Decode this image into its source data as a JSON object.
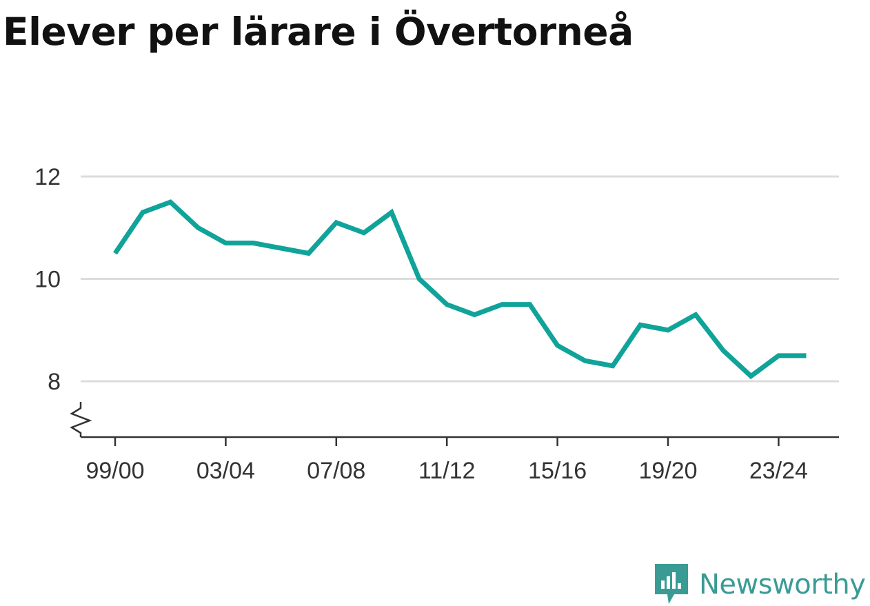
{
  "chart_data": {
    "type": "line",
    "title": "Elever per lärare i Övertorneå",
    "xlabel": "",
    "ylabel": "",
    "x": [
      "99/00",
      "00/01",
      "01/02",
      "02/03",
      "03/04",
      "04/05",
      "05/06",
      "06/07",
      "07/08",
      "08/09",
      "09/10",
      "10/11",
      "11/12",
      "12/13",
      "13/14",
      "14/15",
      "15/16",
      "16/17",
      "17/18",
      "18/19",
      "19/20",
      "20/21",
      "21/22",
      "22/23",
      "23/24",
      "24/25"
    ],
    "series": [
      {
        "values": [
          10.5,
          11.3,
          11.5,
          11.0,
          10.7,
          10.7,
          10.6,
          10.5,
          11.1,
          10.9,
          11.3,
          10.0,
          9.5,
          9.3,
          9.5,
          9.5,
          8.7,
          8.4,
          8.3,
          9.1,
          9.0,
          9.3,
          8.6,
          8.1,
          8.5,
          8.5
        ]
      }
    ],
    "x_tick_labels": [
      "99/00",
      "03/04",
      "07/08",
      "11/12",
      "15/16",
      "19/20",
      "23/24"
    ],
    "y_ticks": [
      8,
      10,
      12
    ],
    "ylim": [
      7,
      12
    ],
    "y_axis_break": true,
    "grid": "horizontal",
    "legend": "none",
    "line_color": "#10a39a"
  },
  "branding": {
    "name": "Newsworthy",
    "logo_icon": "newsworthy-logo-icon",
    "color": "#3a9b95"
  }
}
